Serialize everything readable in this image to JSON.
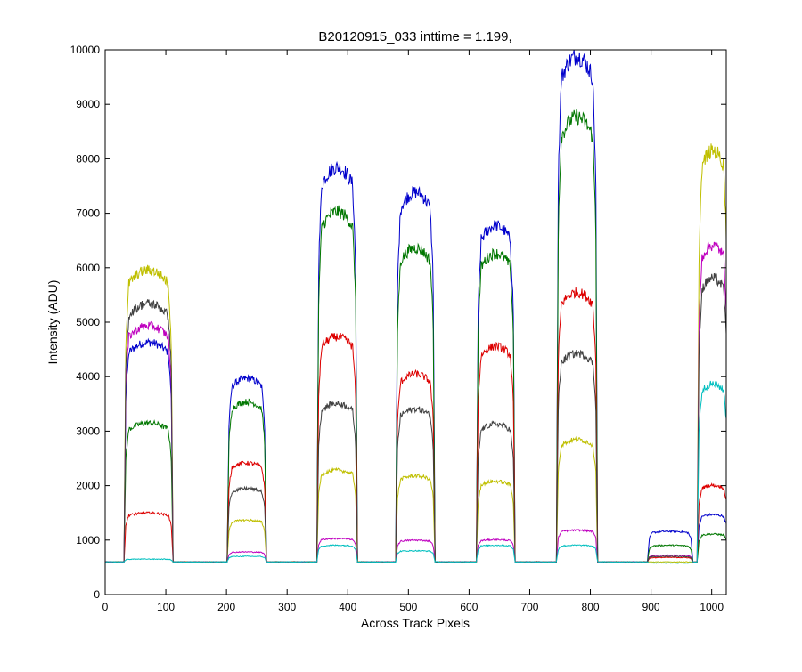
{
  "chart_data": {
    "type": "line",
    "title": "B20120915_033 inttime = 1.199,",
    "xlabel": "Across Track Pixels",
    "ylabel": "Intensity (ADU)",
    "xlim": [
      0,
      1024
    ],
    "ylim": [
      0,
      10000
    ],
    "xticks": [
      0,
      100,
      200,
      300,
      400,
      500,
      600,
      700,
      800,
      900,
      1000
    ],
    "yticks": [
      0,
      1000,
      2000,
      3000,
      4000,
      5000,
      6000,
      7000,
      8000,
      9000,
      10000
    ],
    "grid": false,
    "baseline": 600,
    "segments": [
      {
        "start": 35,
        "end": 108
      },
      {
        "start": 205,
        "end": 262
      },
      {
        "start": 353,
        "end": 412
      },
      {
        "start": 483,
        "end": 540
      },
      {
        "start": 616,
        "end": 672
      },
      {
        "start": 748,
        "end": 808
      },
      {
        "start": 898,
        "end": 965
      },
      {
        "start": 980,
        "end": 1024
      }
    ],
    "series": [
      {
        "color": "#0000cc",
        "levels": [
          4550,
          3900,
          7700,
          7250,
          6650,
          9700,
          1150,
          1450
        ]
      },
      {
        "color": "#007700",
        "levels": [
          3100,
          3480,
          6900,
          6250,
          6150,
          8600,
          900,
          1100
        ]
      },
      {
        "color": "#dd0000",
        "levels": [
          1480,
          2380,
          4650,
          3980,
          4480,
          5450,
          680,
          1980
        ]
      },
      {
        "color": "#bfbf00",
        "levels": [
          5850,
          1350,
          2250,
          2150,
          2050,
          2800,
          600,
          8000
        ]
      },
      {
        "color": "#bf00bf",
        "levels": [
          4850,
          780,
          1020,
          990,
          1000,
          1170,
          720,
          6300
        ]
      },
      {
        "color": "#404040",
        "levels": [
          5250,
          1920,
          3450,
          3350,
          3080,
          4350,
          700,
          5700
        ]
      },
      {
        "color": "#00bfbf",
        "levels": [
          650,
          700,
          900,
          800,
          900,
          900,
          580,
          3800
        ]
      }
    ]
  }
}
